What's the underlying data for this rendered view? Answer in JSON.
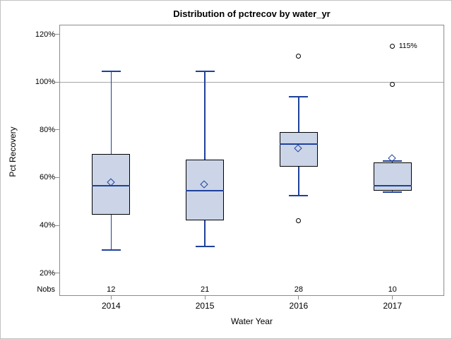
{
  "chart_data": {
    "type": "boxplot",
    "title": "Distribution of pctrecov by water_yr",
    "xlabel": "Water Year",
    "ylabel": "Pct Recovery",
    "nobs_row_label": "Nobs",
    "categories": [
      "2014",
      "2015",
      "2016",
      "2017"
    ],
    "nobs": [
      12,
      21,
      28,
      10
    ],
    "y_ticks": [
      20,
      40,
      60,
      80,
      100,
      120
    ],
    "y_tick_suffix": "%",
    "ylim": [
      10.4,
      124.1
    ],
    "reference_line": 100,
    "grid": false,
    "legend": "none",
    "series": [
      {
        "category": "2014",
        "min": 29.5,
        "q1": 44.5,
        "median": 56.5,
        "q3": 70,
        "max": 104.5,
        "mean": 58,
        "outliers": []
      },
      {
        "category": "2015",
        "min": 31,
        "q1": 42,
        "median": 54.5,
        "q3": 67.5,
        "max": 104.5,
        "mean": 57,
        "outliers": []
      },
      {
        "category": "2016",
        "min": 52.5,
        "q1": 64.5,
        "median": 74,
        "q3": 79,
        "max": 94,
        "mean": 72,
        "outliers": [
          42,
          111
        ]
      },
      {
        "category": "2017",
        "min": 54,
        "q1": 54.5,
        "median": 56.5,
        "q3": 66.5,
        "max": 67,
        "mean": 68,
        "outliers": [
          99,
          115
        ]
      }
    ],
    "outlier_labels": [
      {
        "category_index": 3,
        "value": 115,
        "text": "115%"
      }
    ],
    "colors": {
      "box_fill": "#cbd5e7",
      "box_border": "#000000",
      "line": "#1e419b",
      "reference_line": "#a6a6a6",
      "axis": "#8c8c8c",
      "text": "#000000"
    }
  }
}
